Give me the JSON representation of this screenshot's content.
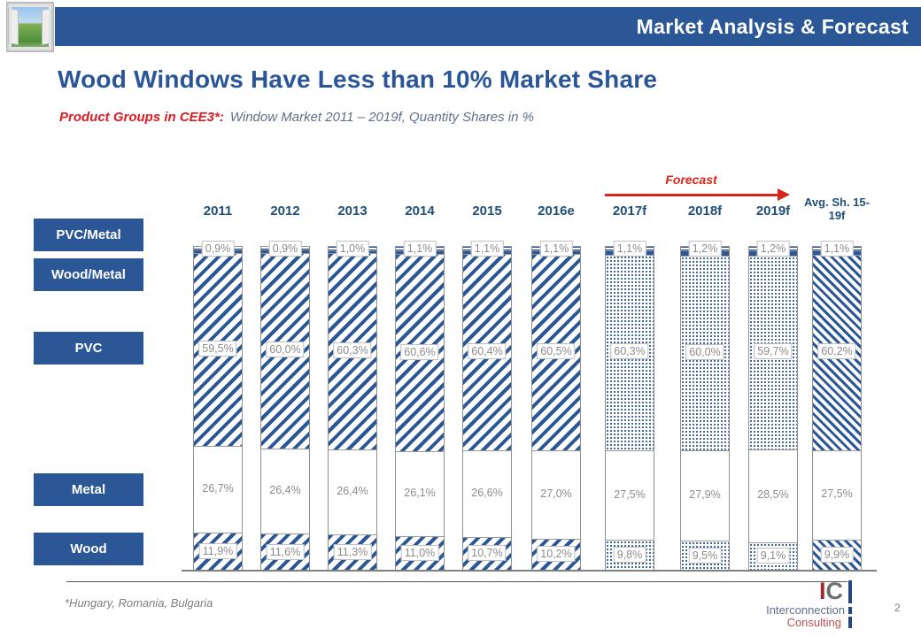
{
  "slide": {
    "header_title": "Market Analysis & Forecast",
    "title": "Wood Windows Have Less than 10% Market Share",
    "subtitle": {
      "lead": "Product Groups in CEE3*:",
      "rest": "Window Market 2011 – 2019f, Quantity Shares in %"
    },
    "footnote": "*Hungary, Romania, Bulgaria",
    "page_number": "2"
  },
  "legend": {
    "items": [
      "PVC/Metal",
      "Wood/Metal",
      "PVC",
      "Metal",
      "Wood"
    ]
  },
  "forecast": {
    "label": "Forecast"
  },
  "logo": {
    "monogram_i": "I",
    "monogram_c": "C",
    "line1": "Interconnection",
    "line2": "Consulting"
  },
  "colors": {
    "accent_blue": "#2B5797",
    "title_blue": "#2A5699",
    "year_label_blue": "#1F4E79",
    "red": "#D9261C",
    "value_label_gray": "#8C8C8C",
    "logo_monogram_red": "#9E2A2B",
    "logo_monogram_gray": "#6E6E6E",
    "logo_interconnection": "#5E718A",
    "logo_consulting": "#C0504D"
  },
  "chart_data": {
    "type": "bar",
    "stacked": true,
    "unit": "%",
    "title": "Product Groups in CEE3: Window Market 2011 – 2019f, Quantity Shares in %",
    "categories": [
      "2011",
      "2012",
      "2013",
      "2014",
      "2015",
      "2016e",
      "2017f",
      "2018f",
      "2019f",
      "Avg. Sh. 15-19f"
    ],
    "forecast_categories": [
      "2017f",
      "2018f",
      "2019f"
    ],
    "bar_patterns": [
      "hatch",
      "hatch",
      "hatch",
      "hatch",
      "hatch",
      "hatch",
      "dots",
      "dots",
      "dots",
      "hatch-back"
    ],
    "legend_position": "left",
    "ylim": [
      0,
      100
    ],
    "label_format": "comma_decimal_percent",
    "unlabeled_series_note": "Wood/Metal thin segment is drawn but carries no visible value label (remainder to 100%)",
    "series": [
      {
        "name": "PVC/Metal",
        "values": [
          0.9,
          0.9,
          1.0,
          1.1,
          1.1,
          1.1,
          1.1,
          1.2,
          1.2,
          1.1
        ]
      },
      {
        "name": "PVC",
        "values": [
          59.5,
          60.0,
          60.3,
          60.6,
          60.4,
          60.5,
          60.3,
          60.0,
          59.7,
          60.2
        ]
      },
      {
        "name": "Metal",
        "values": [
          26.7,
          26.4,
          26.4,
          26.1,
          26.6,
          27.0,
          27.5,
          27.9,
          28.5,
          27.5
        ]
      },
      {
        "name": "Wood",
        "values": [
          11.9,
          11.6,
          11.3,
          11.0,
          10.7,
          10.2,
          9.8,
          9.5,
          9.1,
          9.9
        ]
      }
    ]
  }
}
